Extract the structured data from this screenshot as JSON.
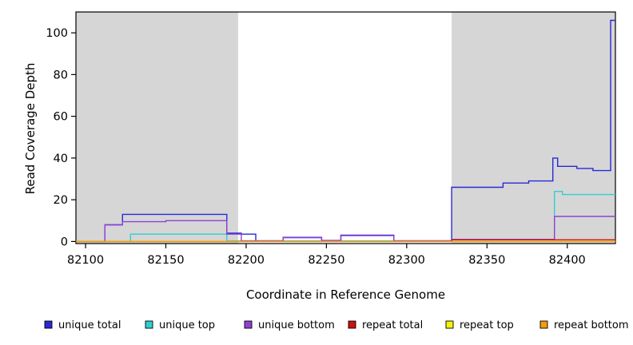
{
  "chart_data": {
    "type": "line",
    "step": true,
    "title": "",
    "xlabel": "Coordinate in Reference Genome",
    "ylabel": "Read Coverage Depth",
    "xlim": [
      82094,
      82430
    ],
    "ylim": [
      -1,
      110
    ],
    "xticks": [
      82100,
      82150,
      82200,
      82250,
      82300,
      82350,
      82400
    ],
    "yticks": [
      0,
      20,
      40,
      60,
      80,
      100
    ],
    "grid": false,
    "legend_position": "bottom",
    "plot_border_color": "#000000",
    "shaded_region_color": "#d6d6d6",
    "shaded_regions": [
      [
        82094,
        82195
      ],
      [
        82328,
        82430
      ]
    ],
    "series": [
      {
        "name": "unique total",
        "color": "#2929d6",
        "points": [
          [
            82094,
            0
          ],
          [
            82112,
            8
          ],
          [
            82123,
            13
          ],
          [
            82188,
            4
          ],
          [
            82197,
            3.5
          ],
          [
            82206,
            0.3
          ],
          [
            82223,
            2
          ],
          [
            82247,
            0.5
          ],
          [
            82259,
            3
          ],
          [
            82292,
            0.3
          ],
          [
            82328,
            26
          ],
          [
            82360,
            28
          ],
          [
            82376,
            29
          ],
          [
            82391,
            40
          ],
          [
            82394,
            36
          ],
          [
            82406,
            35
          ],
          [
            82416,
            34
          ],
          [
            82427,
            106
          ]
        ]
      },
      {
        "name": "unique top",
        "color": "#30cfcf",
        "points": [
          [
            82094,
            0
          ],
          [
            82128,
            3.5
          ],
          [
            82188,
            0.3
          ],
          [
            82328,
            1
          ],
          [
            82392,
            24
          ],
          [
            82397,
            22.5
          ]
        ]
      },
      {
        "name": "unique bottom",
        "color": "#9140d4",
        "points": [
          [
            82094,
            0
          ],
          [
            82112,
            8
          ],
          [
            82123,
            9.5
          ],
          [
            82150,
            10
          ],
          [
            82188,
            3.5
          ],
          [
            82197,
            0.3
          ],
          [
            82223,
            1.8
          ],
          [
            82247,
            0.4
          ],
          [
            82259,
            2.8
          ],
          [
            82292,
            0.3
          ],
          [
            82328,
            1
          ],
          [
            82392,
            12
          ]
        ]
      },
      {
        "name": "repeat total",
        "color": "#cc1111",
        "points": [
          [
            82094,
            0
          ],
          [
            82328,
            0.8
          ]
        ]
      },
      {
        "name": "repeat top",
        "color": "#f2f20c",
        "points": [
          [
            82094,
            0
          ]
        ]
      },
      {
        "name": "repeat bottom",
        "color": "#f59b0f",
        "points": [
          [
            82094,
            0
          ]
        ]
      }
    ],
    "legend": [
      "unique total",
      "unique top",
      "unique bottom",
      "repeat total",
      "repeat top",
      "repeat bottom"
    ]
  }
}
